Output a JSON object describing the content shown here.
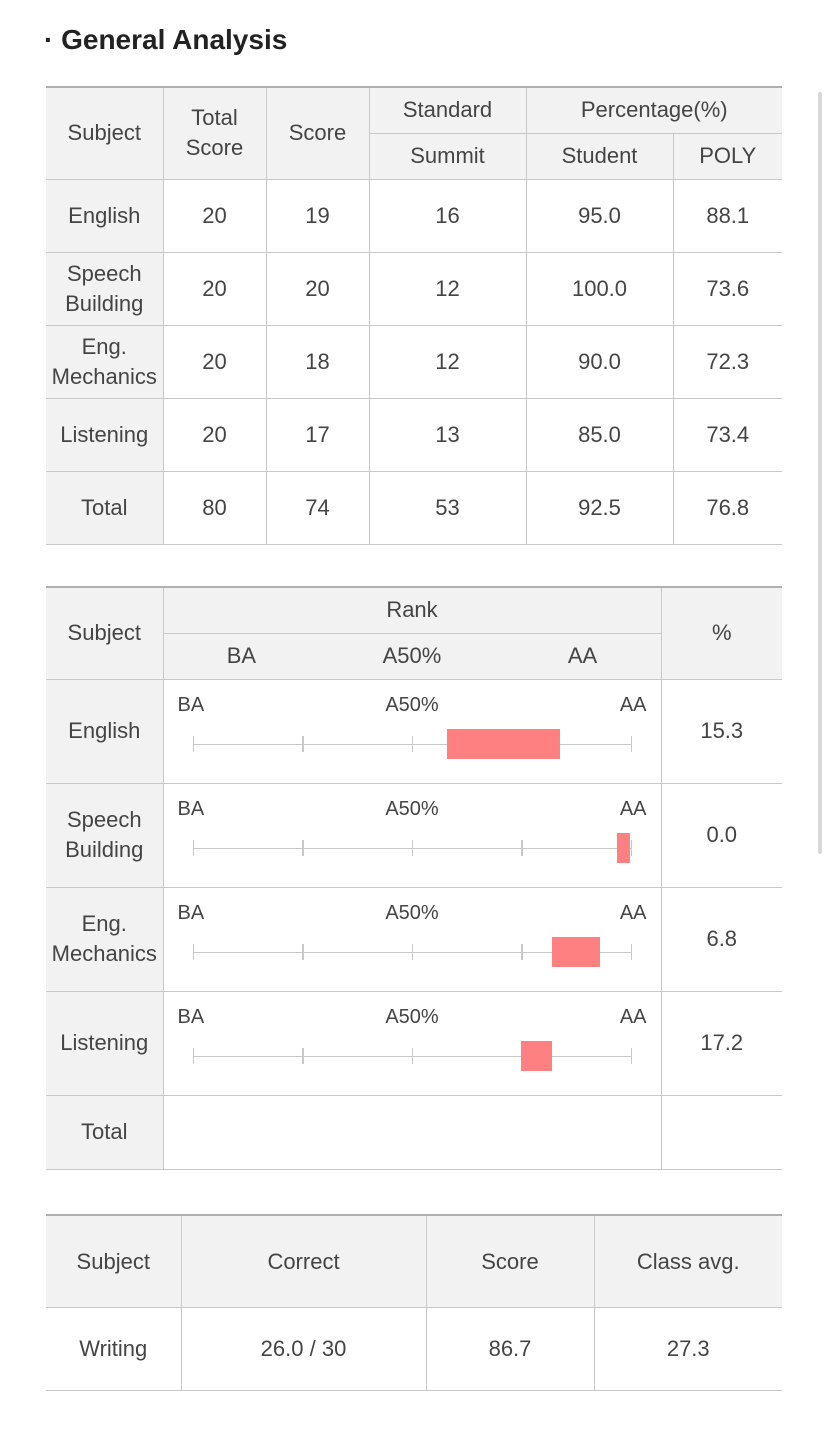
{
  "title": "· General Analysis",
  "general": {
    "headers": {
      "subject": "Subject",
      "total_score": "Total Score",
      "score": "Score",
      "standard": "Standard",
      "summit": "Summit",
      "percentage": "Percentage(%)",
      "student": "Student",
      "poly": "POLY"
    },
    "rows": [
      {
        "subject": "English",
        "total": "20",
        "score": "19",
        "summit": "16",
        "student": "95.0",
        "poly": "88.1"
      },
      {
        "subject": "Speech Building",
        "total": "20",
        "score": "20",
        "summit": "12",
        "student": "100.0",
        "poly": "73.6"
      },
      {
        "subject": "Eng. Mechanics",
        "total": "20",
        "score": "18",
        "summit": "12",
        "student": "90.0",
        "poly": "72.3"
      },
      {
        "subject": "Listening",
        "total": "20",
        "score": "17",
        "summit": "13",
        "student": "85.0",
        "poly": "73.4"
      },
      {
        "subject": "Total",
        "total": "80",
        "score": "74",
        "summit": "53",
        "student": "92.5",
        "poly": "76.8"
      }
    ]
  },
  "rank": {
    "headers": {
      "subject": "Subject",
      "rank": "Rank",
      "ba": "BA",
      "a50": "A50%",
      "aa": "AA",
      "percent": "%"
    },
    "bar_labels": {
      "ba": "BA",
      "a50": "A50%",
      "aa": "AA"
    },
    "bar_color": "#ff8080",
    "rows": [
      {
        "subject": "English",
        "percent": "15.3",
        "bar_start": 0.58,
        "bar_end": 0.84
      },
      {
        "subject": "Speech Building",
        "percent": "0.0",
        "bar_start": 0.97,
        "bar_end": 1.0
      },
      {
        "subject": "Eng. Mechanics",
        "percent": "6.8",
        "bar_start": 0.82,
        "bar_end": 0.93
      },
      {
        "subject": "Listening",
        "percent": "17.2",
        "bar_start": 0.75,
        "bar_end": 0.82
      }
    ],
    "total_label": "Total"
  },
  "writing": {
    "headers": {
      "subject": "Subject",
      "correct": "Correct",
      "score": "Score",
      "class_avg": "Class avg."
    },
    "row": {
      "subject": "Writing",
      "correct": "26.0 / 30",
      "score": "86.7",
      "class_avg": "27.3"
    }
  }
}
